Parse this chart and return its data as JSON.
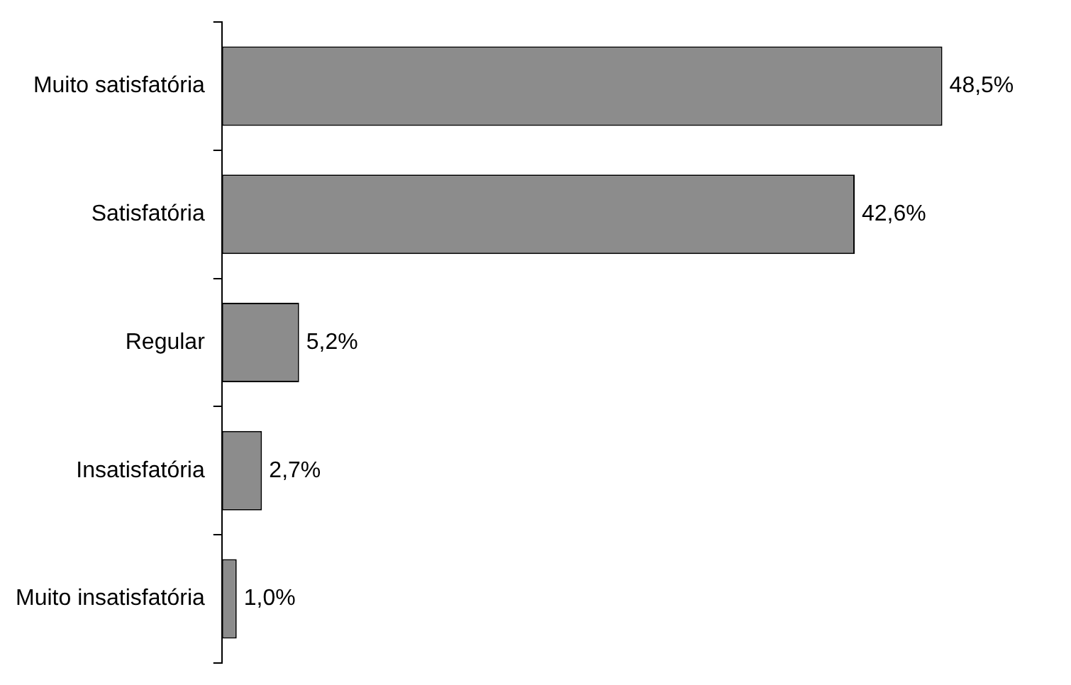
{
  "chart_data": {
    "type": "bar",
    "orientation": "horizontal",
    "categories": [
      "Muito satisfatória",
      "Satisfatória",
      "Regular",
      "Insatisfatória",
      "Muito insatisfatória"
    ],
    "values": [
      48.5,
      42.6,
      5.2,
      2.7,
      1.0
    ],
    "color": "#8c8c8c",
    "value_labels": [
      "48,5%",
      "42,6%",
      "5,2%",
      "2,7%",
      "1,0%"
    ]
  }
}
